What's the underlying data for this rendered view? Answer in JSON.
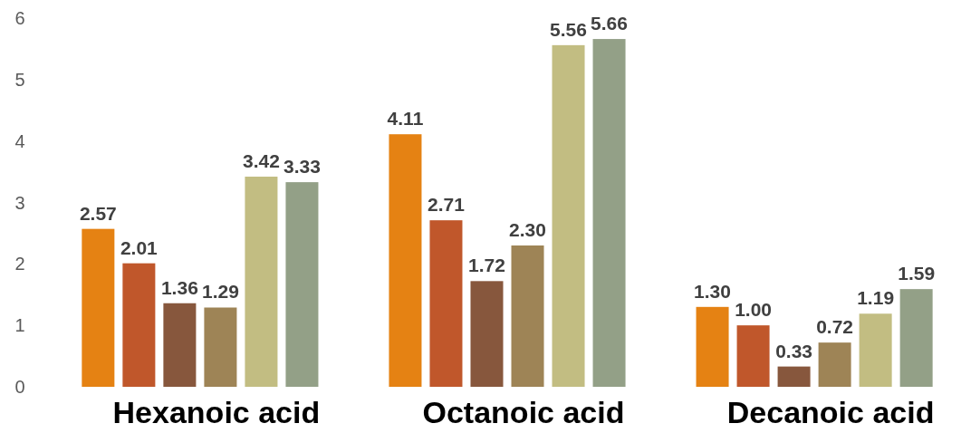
{
  "chart_data": {
    "type": "bar",
    "categories": [
      "Hexanoic acid",
      "Octanoic acid",
      "Decanoic acid"
    ],
    "series": [
      {
        "color": "#e58213",
        "values": [
          2.57,
          4.11,
          1.3
        ],
        "value_labels": [
          "2.57",
          "4.11",
          "1.30"
        ]
      },
      {
        "color": "#c0572b",
        "values": [
          2.01,
          2.71,
          1.0
        ],
        "value_labels": [
          "2.01",
          "2.71",
          "1.00"
        ]
      },
      {
        "color": "#87573d",
        "values": [
          1.36,
          1.72,
          0.33
        ],
        "value_labels": [
          "1.36",
          "1.72",
          "0.33"
        ]
      },
      {
        "color": "#9e8456",
        "values": [
          1.29,
          2.3,
          0.72
        ],
        "value_labels": [
          "1.29",
          "2.30",
          "0.72"
        ]
      },
      {
        "color": "#c2bd82",
        "values": [
          3.42,
          5.56,
          1.19
        ],
        "value_labels": [
          "3.42",
          "5.56",
          "1.19"
        ]
      },
      {
        "color": "#93a087",
        "values": [
          3.33,
          5.66,
          1.59
        ],
        "value_labels": [
          "3.33",
          "5.66",
          "1.59"
        ]
      }
    ],
    "ylim": [
      0,
      6
    ],
    "yticks": [
      0,
      1,
      2,
      3,
      4,
      5,
      6
    ],
    "grid": false
  }
}
